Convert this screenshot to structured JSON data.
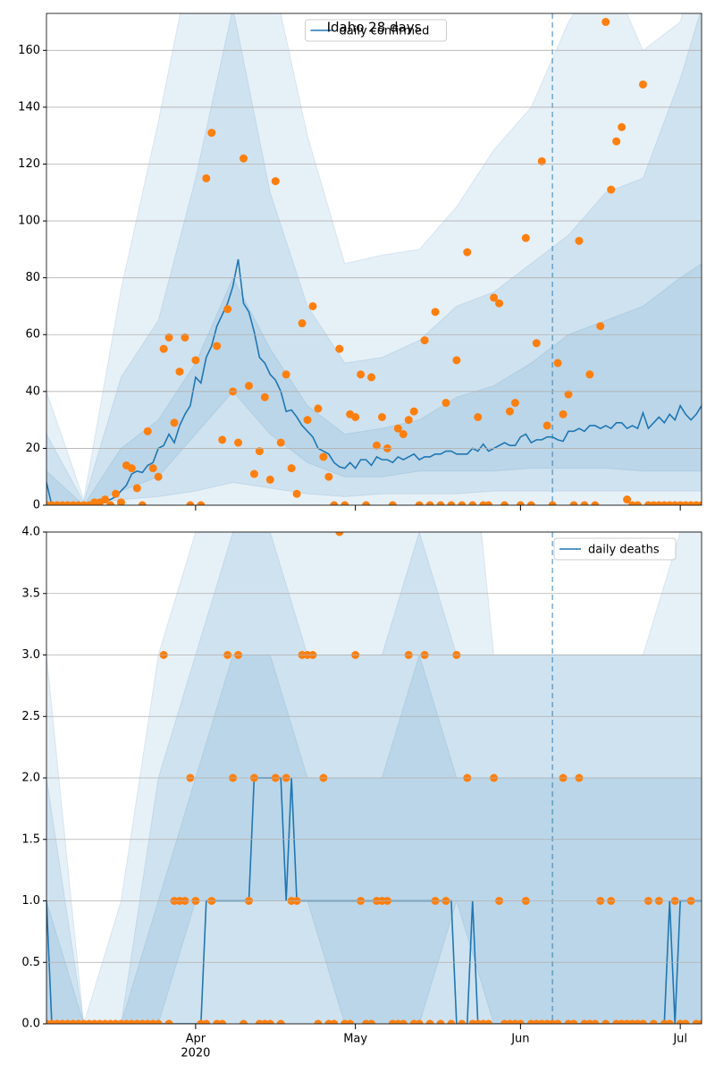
{
  "chart_data": [
    {
      "type": "line",
      "title": "Idaho 28 days",
      "legend": "upper center",
      "grid": true,
      "xlim": [
        64,
        187
      ],
      "xticks": [
        92,
        122,
        153,
        183
      ],
      "ylim": [
        0,
        173
      ],
      "yticks": [
        0,
        20,
        40,
        60,
        80,
        100,
        120,
        140,
        160
      ],
      "vline": 159,
      "x": [
        64,
        65,
        66,
        67,
        68,
        69,
        70,
        71,
        72,
        73,
        74,
        75,
        76,
        77,
        78,
        79,
        80,
        81,
        82,
        83,
        84,
        85,
        86,
        87,
        88,
        89,
        90,
        91,
        92,
        93,
        94,
        95,
        96,
        97,
        98,
        99,
        100,
        101,
        102,
        103,
        104,
        105,
        106,
        107,
        108,
        109,
        110,
        111,
        112,
        113,
        114,
        115,
        116,
        117,
        118,
        119,
        120,
        121,
        122,
        123,
        124,
        125,
        126,
        127,
        128,
        129,
        130,
        131,
        132,
        133,
        134,
        135,
        136,
        137,
        138,
        139,
        140,
        141,
        142,
        143,
        144,
        145,
        146,
        147,
        148,
        149,
        150,
        151,
        152,
        153,
        154,
        155,
        156,
        157,
        158,
        159,
        160,
        161,
        162,
        163,
        164,
        165,
        166,
        167,
        168,
        169,
        170,
        171,
        172,
        173,
        174,
        175,
        176,
        177,
        178,
        179,
        180,
        181,
        182,
        183,
        184,
        185,
        186,
        187
      ],
      "series": [
        {
          "name": "daily confirmed",
          "color": "#1f77b4",
          "values": [
            8,
            0,
            0,
            0,
            0,
            0,
            0,
            0,
            0,
            0.5,
            1,
            1.5,
            2,
            3,
            5,
            7,
            11,
            12,
            11.5,
            14,
            15,
            20,
            21,
            25,
            22,
            28,
            32,
            35,
            45,
            43,
            52,
            56,
            63,
            67,
            71,
            77,
            86.5,
            71,
            68,
            61,
            52,
            50,
            46,
            44,
            40,
            33,
            33.5,
            31,
            28,
            26,
            24,
            20,
            19,
            18,
            15,
            13.5,
            13,
            15,
            13,
            16,
            16,
            14,
            17,
            16,
            16,
            15,
            17,
            16,
            17,
            18,
            16,
            17,
            17,
            18,
            18,
            19,
            19,
            18,
            18,
            18,
            20,
            19,
            21.5,
            19,
            20,
            21,
            22,
            21,
            21,
            24,
            25,
            22,
            23,
            23,
            24,
            24,
            23,
            22.5,
            26,
            26,
            27,
            26,
            28,
            28,
            27,
            28,
            27,
            29,
            29,
            27,
            28,
            27,
            32.5,
            27,
            29,
            31,
            29,
            32,
            30,
            35,
            32,
            30,
            32,
            35
          ]
        }
      ],
      "observed": {
        "color": "#ff7f0e",
        "values": [
          0,
          0,
          0,
          0,
          0,
          0,
          0,
          0,
          0,
          1,
          1,
          2,
          0,
          4,
          1,
          14,
          13,
          6,
          0,
          26,
          13,
          10,
          55,
          59,
          29,
          47,
          59,
          0,
          51,
          0,
          115,
          131,
          56,
          23,
          69,
          40,
          22,
          122,
          42,
          11,
          19,
          38,
          9,
          114,
          22,
          46,
          13,
          4,
          64,
          30,
          70,
          34,
          17,
          10,
          0,
          55,
          0,
          32,
          31,
          46,
          0,
          45,
          21,
          31,
          20,
          0,
          27,
          25,
          30,
          33,
          0,
          58,
          0,
          68,
          0,
          36,
          0,
          51,
          0,
          89,
          0,
          31,
          0,
          0,
          73,
          71,
          0,
          33,
          36,
          0,
          94,
          0,
          57,
          121,
          28,
          0,
          50,
          32,
          39,
          0,
          93,
          0,
          46,
          0,
          63,
          170,
          111,
          128,
          133,
          2,
          0,
          0,
          148,
          0,
          0,
          0,
          0,
          0,
          0,
          0,
          0,
          0,
          0,
          0
        ]
      },
      "band_color": "#1f77b4",
      "band_x": [
        64,
        71,
        78,
        85,
        92,
        99,
        106,
        113,
        120,
        127,
        134,
        141,
        148,
        155,
        162,
        169,
        176,
        183,
        187
      ],
      "bands": [
        {
          "lower": [
            0,
            0,
            0,
            0,
            0,
            0,
            0,
            0,
            0,
            0,
            0,
            0,
            0,
            0,
            0,
            0,
            0,
            0,
            0
          ],
          "upper": [
            40,
            2,
            76,
            135,
            200,
            300,
            190,
            130,
            85,
            88,
            90,
            105,
            125,
            140,
            170,
            190,
            160,
            170,
            200
          ]
        },
        {
          "lower": [
            0,
            0,
            2,
            3,
            5,
            8,
            6,
            4,
            3,
            4,
            4,
            4,
            5,
            5,
            5,
            5,
            5,
            5,
            5
          ],
          "upper": [
            25,
            1,
            45,
            65,
            115,
            175,
            110,
            70,
            50,
            52,
            58,
            70,
            75,
            85,
            95,
            110,
            115,
            150,
            175
          ]
        },
        {
          "lower": [
            0,
            0,
            5,
            10,
            25,
            40,
            25,
            15,
            10,
            10,
            12,
            12,
            12,
            13,
            13,
            13,
            12,
            12,
            12
          ],
          "upper": [
            12,
            0,
            20,
            30,
            50,
            80,
            55,
            35,
            25,
            27,
            30,
            38,
            42,
            50,
            60,
            65,
            70,
            80,
            85
          ]
        }
      ]
    },
    {
      "type": "line",
      "legend": "upper right",
      "grid": true,
      "xlim": [
        64,
        187
      ],
      "xticks": [
        {
          "value": 92,
          "label": "Apr",
          "sublabel": "2020"
        },
        {
          "value": 122,
          "label": "May"
        },
        {
          "value": 153,
          "label": "Jun"
        },
        {
          "value": 183,
          "label": "Jul"
        }
      ],
      "ylim": [
        0,
        4
      ],
      "yticks": [
        {
          "value": 0,
          "label": "0.0"
        },
        {
          "value": 0.5,
          "label": "0.5"
        },
        {
          "value": 1,
          "label": "1.0"
        },
        {
          "value": 1.5,
          "label": "1.5"
        },
        {
          "value": 2,
          "label": "2.0"
        },
        {
          "value": 2.5,
          "label": "2.5"
        },
        {
          "value": 3,
          "label": "3.0"
        },
        {
          "value": 3.5,
          "label": "3.5"
        },
        {
          "value": 4,
          "label": "4.0"
        }
      ],
      "vline": 159,
      "x": [
        64,
        65,
        66,
        67,
        68,
        69,
        70,
        71,
        72,
        73,
        74,
        75,
        76,
        77,
        78,
        79,
        80,
        81,
        82,
        83,
        84,
        85,
        86,
        87,
        88,
        89,
        90,
        91,
        92,
        93,
        94,
        95,
        96,
        97,
        98,
        99,
        100,
        101,
        102,
        103,
        104,
        105,
        106,
        107,
        108,
        109,
        110,
        111,
        112,
        113,
        114,
        115,
        116,
        117,
        118,
        119,
        120,
        121,
        122,
        123,
        124,
        125,
        126,
        127,
        128,
        129,
        130,
        131,
        132,
        133,
        134,
        135,
        136,
        137,
        138,
        139,
        140,
        141,
        142,
        143,
        144,
        145,
        146,
        147,
        148,
        149,
        150,
        151,
        152,
        153,
        154,
        155,
        156,
        157,
        158,
        159,
        160,
        161,
        162,
        163,
        164,
        165,
        166,
        167,
        168,
        169,
        170,
        171,
        172,
        173,
        174,
        175,
        176,
        177,
        178,
        179,
        180,
        181,
        182,
        183,
        184,
        185,
        186,
        187
      ],
      "series": [
        {
          "name": "daily deaths",
          "color": "#1f77b4",
          "values": [
            1,
            0,
            0,
            0,
            0,
            0,
            0,
            0,
            0,
            0,
            0,
            0,
            0,
            0,
            0,
            0,
            0,
            0,
            0,
            0,
            0,
            0,
            0,
            0,
            0,
            0,
            0,
            0,
            0,
            0,
            1,
            1,
            1,
            1,
            1,
            1,
            1,
            1,
            1,
            2,
            2,
            2,
            2,
            2,
            2,
            1,
            2,
            1,
            1,
            1,
            1,
            1,
            1,
            1,
            1,
            1,
            1,
            1,
            1,
            1,
            1,
            1,
            1,
            1,
            1,
            1,
            1,
            1,
            1,
            1,
            1,
            1,
            1,
            1,
            1,
            1,
            1,
            0,
            0,
            0,
            1,
            0,
            0,
            0,
            0,
            0,
            0,
            0,
            0,
            0,
            0,
            0,
            0,
            0,
            0,
            0,
            0,
            0,
            0,
            0,
            0,
            0,
            0,
            0,
            0,
            0,
            0,
            0,
            0,
            0,
            0,
            0,
            0,
            0,
            0,
            0,
            0,
            1,
            0,
            1,
            1,
            1,
            1,
            1
          ]
        }
      ],
      "observed": {
        "color": "#ff7f0e",
        "values": [
          0,
          0,
          0,
          0,
          0,
          0,
          0,
          0,
          0,
          0,
          0,
          0,
          0,
          0,
          0,
          0,
          0,
          0,
          0,
          0,
          0,
          0,
          3,
          0,
          1,
          1,
          1,
          2,
          1,
          0,
          0,
          1,
          0,
          0,
          3,
          2,
          3,
          0,
          1,
          2,
          0,
          0,
          0,
          2,
          0,
          2,
          1,
          1,
          3,
          3,
          3,
          0,
          2,
          0,
          0,
          4,
          0,
          0,
          3,
          1,
          0,
          0,
          1,
          1,
          1,
          0,
          0,
          0,
          3,
          0,
          0,
          3,
          0,
          1,
          0,
          1,
          0,
          3,
          0,
          2,
          0,
          0,
          0,
          0,
          2,
          1,
          0,
          0,
          0,
          0,
          1,
          0,
          0,
          0,
          0,
          0,
          0,
          2,
          0,
          0,
          2,
          0,
          0,
          0,
          1,
          0,
          1,
          0,
          0,
          0,
          0,
          0,
          0,
          1,
          0,
          1,
          0,
          0,
          1,
          0,
          0,
          1,
          0,
          0
        ]
      },
      "band_color": "#1f77b4",
      "band_x": [
        64,
        71,
        78,
        85,
        92,
        99,
        106,
        113,
        120,
        127,
        134,
        141,
        148,
        155,
        162,
        169,
        176,
        183,
        187
      ],
      "bands": [
        {
          "lower": [
            0,
            0,
            0,
            0,
            0,
            0,
            0,
            0,
            0,
            0,
            0,
            0,
            0,
            0,
            0,
            0,
            0,
            0,
            0
          ],
          "upper": [
            3,
            0,
            1,
            3,
            4,
            6,
            6,
            6,
            4,
            4,
            6,
            6,
            3,
            3,
            3,
            3,
            3,
            4,
            4
          ]
        },
        {
          "lower": [
            0,
            0,
            0,
            0,
            0,
            0,
            0,
            0,
            0,
            0,
            0,
            0,
            0,
            0,
            0,
            0,
            0,
            0,
            0
          ],
          "upper": [
            2,
            0,
            0,
            2,
            3,
            4,
            4,
            3,
            3,
            3,
            4,
            3,
            3,
            3,
            3,
            3,
            3,
            3,
            3
          ]
        },
        {
          "lower": [
            0,
            0,
            0,
            0,
            1,
            1,
            1,
            1,
            0,
            0,
            0,
            1,
            0,
            0,
            0,
            0,
            0,
            0,
            0
          ],
          "upper": [
            1,
            0,
            0,
            1,
            2,
            3,
            3,
            2,
            2,
            2,
            3,
            2,
            2,
            2,
            2,
            2,
            2,
            2,
            2
          ]
        }
      ]
    }
  ]
}
